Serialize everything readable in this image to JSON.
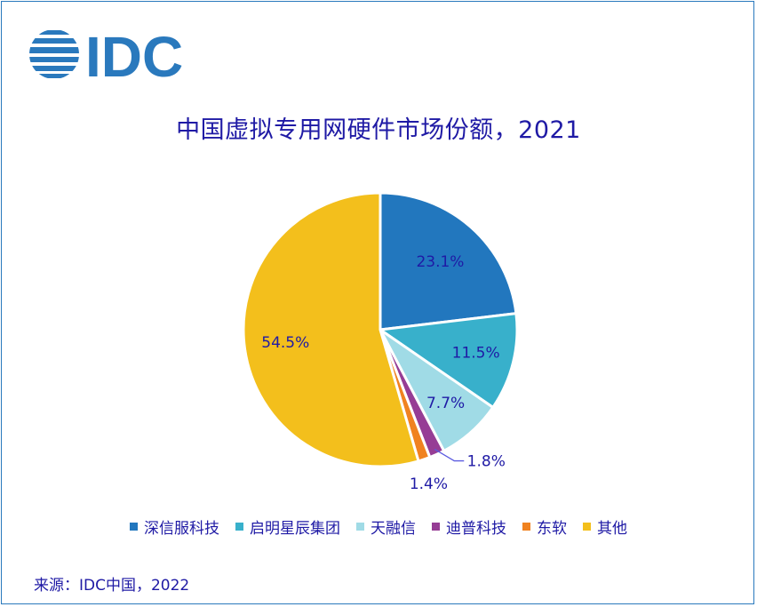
{
  "logo_text": "IDC",
  "source": "来源：IDC中国，2022",
  "colors": {
    "border": "#2a79bd",
    "text": "#1f1aa5"
  },
  "chart_data": {
    "type": "pie",
    "title": "中国虚拟专用网硬件市场份额，2021",
    "legend_position": "bottom",
    "categories": [
      "深信服科技",
      "启明星辰集团",
      "天融信",
      "迪普科技",
      "东软",
      "其他"
    ],
    "values": [
      23.1,
      11.5,
      7.7,
      1.8,
      1.4,
      54.5
    ],
    "labels": [
      "23.1%",
      "11.5%",
      "7.7%",
      "1.8%",
      "1.4%",
      "54.5%"
    ],
    "colors": [
      "#2277be",
      "#38b0cb",
      "#a0dbe6",
      "#963d95",
      "#f08220",
      "#f3bf1c"
    ]
  }
}
